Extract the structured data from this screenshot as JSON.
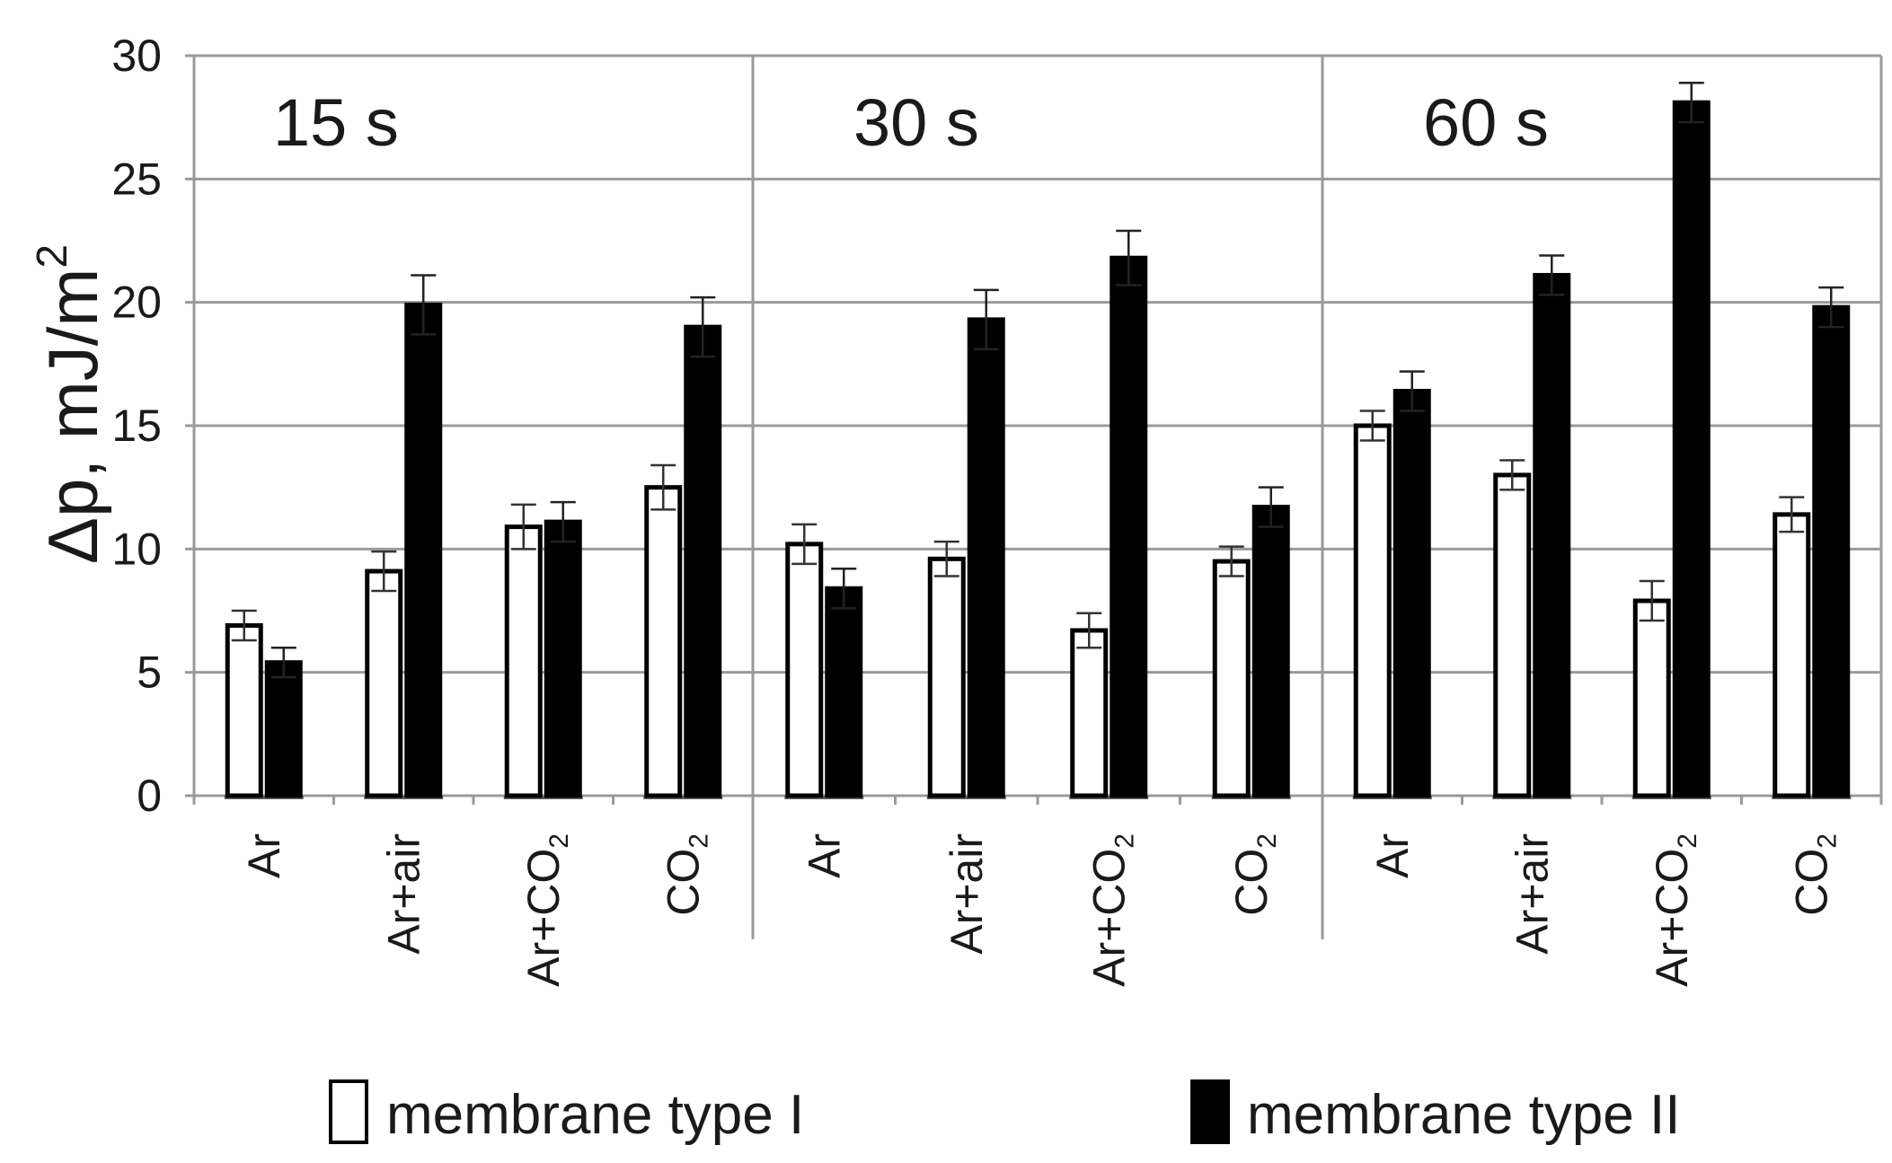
{
  "chart_data": {
    "type": "bar",
    "title": "",
    "ylabel": "Δp, mJ/m",
    "ylabel_superscript": "2",
    "ylim": [
      0,
      30
    ],
    "yticks": [
      0,
      5,
      10,
      15,
      20,
      25,
      30
    ],
    "grid": true,
    "panels": [
      {
        "label": "15 s",
        "categories": [
          {
            "main": "Ar",
            "sub": ""
          },
          {
            "main": "Ar+air",
            "sub": ""
          },
          {
            "main": "Ar+CO",
            "sub": "2"
          },
          {
            "main": "CO",
            "sub": "2"
          }
        ],
        "series": [
          {
            "name": "membrane type I",
            "values": [
              6.9,
              9.1,
              10.9,
              12.5
            ],
            "errors": [
              0.6,
              0.8,
              0.9,
              0.9
            ]
          },
          {
            "name": "membrane type II",
            "values": [
              5.4,
              19.9,
              11.1,
              19.0
            ],
            "errors": [
              0.6,
              1.2,
              0.8,
              1.2
            ]
          }
        ]
      },
      {
        "label": "30 s",
        "categories": [
          {
            "main": "Ar",
            "sub": ""
          },
          {
            "main": "Ar+air",
            "sub": ""
          },
          {
            "main": "Ar+CO",
            "sub": "2"
          },
          {
            "main": "CO",
            "sub": "2"
          }
        ],
        "series": [
          {
            "name": "membrane type I",
            "values": [
              10.2,
              9.6,
              6.7,
              9.5
            ],
            "errors": [
              0.8,
              0.7,
              0.7,
              0.6
            ]
          },
          {
            "name": "membrane type II",
            "values": [
              8.4,
              19.3,
              21.8,
              11.7
            ],
            "errors": [
              0.8,
              1.2,
              1.1,
              0.8
            ]
          }
        ]
      },
      {
        "label": "60 s",
        "categories": [
          {
            "main": "Ar",
            "sub": ""
          },
          {
            "main": "Ar+air",
            "sub": ""
          },
          {
            "main": "Ar+CO",
            "sub": "2"
          },
          {
            "main": "CO",
            "sub": "2"
          }
        ],
        "series": [
          {
            "name": "membrane type I",
            "values": [
              15.0,
              13.0,
              7.9,
              11.4
            ],
            "errors": [
              0.6,
              0.6,
              0.8,
              0.7
            ]
          },
          {
            "name": "membrane type II",
            "values": [
              16.4,
              21.1,
              28.1,
              19.8
            ],
            "errors": [
              0.8,
              0.8,
              0.8,
              0.8
            ]
          }
        ]
      }
    ],
    "legend": {
      "position": "bottom",
      "items": [
        {
          "label": "membrane type I",
          "fill": "#ffffff"
        },
        {
          "label": "membrane type II",
          "fill": "#000000"
        }
      ]
    },
    "colors": {
      "type_I_fill": "#ffffff",
      "type_II_fill": "#000000",
      "bar_stroke": "#000000",
      "grid": "#9a9a9a",
      "text": "#1a1a1a"
    }
  }
}
